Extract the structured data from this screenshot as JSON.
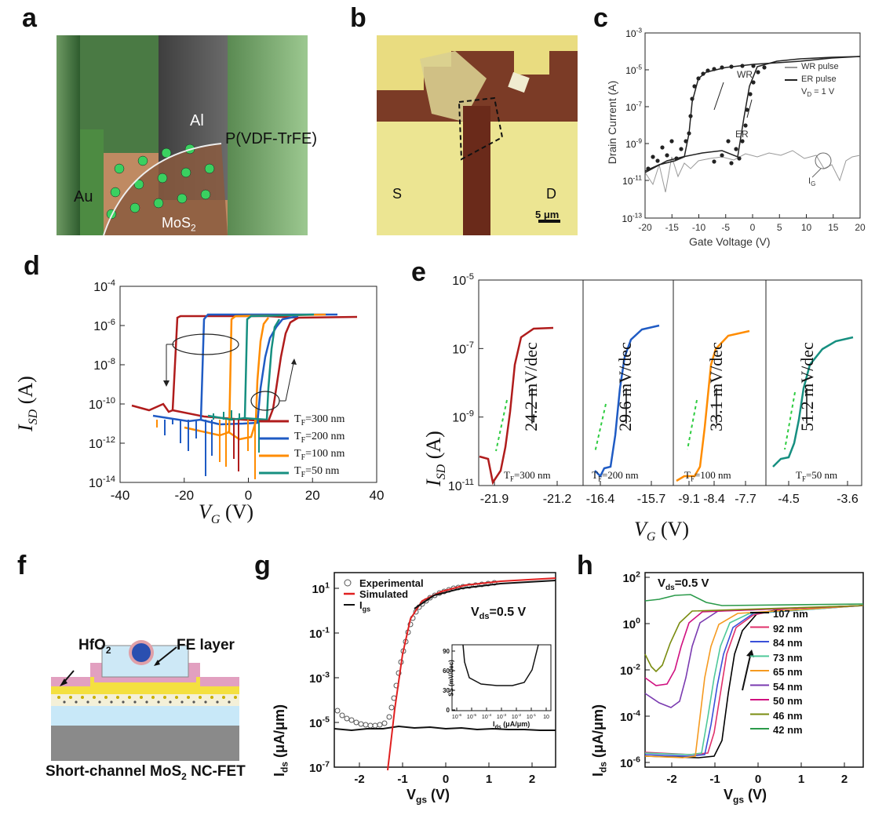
{
  "panels": {
    "a": {
      "letter": "a",
      "labels": {
        "al": "Al",
        "pvdf": "P(VDF-TrFE)",
        "au": "Au",
        "mos2": "MoS",
        "mos2_sub": "2"
      }
    },
    "b": {
      "letter": "b",
      "labels": {
        "s": "S",
        "d": "D",
        "scale": "5 μm"
      }
    },
    "c": {
      "letter": "c",
      "xlabel": "Gate Voltage (V)",
      "ylabel": "Drain Current (A)",
      "xticks": [
        "-20",
        "-15",
        "-10",
        "-5",
        "0",
        "5",
        "10",
        "15",
        "20"
      ],
      "yticks": [
        {
          "b": "10",
          "e": "-3"
        },
        {
          "b": "10",
          "e": "-5"
        },
        {
          "b": "10",
          "e": "-7"
        },
        {
          "b": "10",
          "e": "-9"
        },
        {
          "b": "10",
          "e": "-11"
        },
        {
          "b": "10",
          "e": "-13"
        }
      ],
      "legend": [
        "WR pulse",
        "ER pulse",
        "V",
        "D",
        " = 1 V"
      ],
      "annotations": {
        "wr": "WR",
        "er": "ER",
        "ig": "I",
        "ig_sub": "G"
      }
    },
    "d": {
      "letter": "d",
      "xlabel_main": "V",
      "xlabel_sub": "G",
      "xlabel_unit": " (V)",
      "ylabel_main": "I",
      "ylabel_sub": "SD",
      "ylabel_unit": " (A)",
      "xticks": [
        "-40",
        "-20",
        "0",
        "20",
        "40"
      ],
      "yticks": [
        {
          "b": "10",
          "e": "-4"
        },
        {
          "b": "10",
          "e": "-6"
        },
        {
          "b": "10",
          "e": "-8"
        },
        {
          "b": "10",
          "e": "-10"
        },
        {
          "b": "10",
          "e": "-12"
        },
        {
          "b": "10",
          "e": "-14"
        }
      ],
      "legend": [
        {
          "t": "T",
          "s": "F",
          "v": "=300 nm",
          "color": "#b01c1c"
        },
        {
          "t": "T",
          "s": "F",
          "v": "=200 nm",
          "color": "#1f5bc4"
        },
        {
          "t": "T",
          "s": "F",
          "v": "=100 nm",
          "color": "#ff8c00"
        },
        {
          "t": "T",
          "s": "F",
          "v": "=50 nm",
          "color": "#168f80"
        }
      ]
    },
    "e": {
      "letter": "e",
      "ylabel_main": "I",
      "ylabel_sub": "SD",
      "ylabel_unit": " (A)",
      "xlabel_main": "V",
      "xlabel_sub": "G",
      "xlabel_unit": " (V)",
      "yticks": [
        {
          "b": "10",
          "e": "-5"
        },
        {
          "b": "10",
          "e": "-7"
        },
        {
          "b": "10",
          "e": "-9"
        },
        {
          "b": "10",
          "e": "-11"
        }
      ],
      "xticks": [
        "-21.9",
        "-21.2",
        "-16.4",
        "-15.7",
        "-9.1",
        "-8.4",
        "-7.7",
        "-4.5",
        "-3.6"
      ],
      "subpanels": [
        {
          "ss": "24.2 mV/dec",
          "t": "T",
          "s": "F",
          "v": "=300 nm",
          "color": "#b01c1c"
        },
        {
          "ss": "29.6 mV/dec",
          "t": "T",
          "s": "F",
          "v": "=200 nm",
          "color": "#1f5bc4"
        },
        {
          "ss": "33.1 mV/dec",
          "t": "T",
          "s": "F",
          "v": "=100 nm",
          "color": "#ff8c00"
        },
        {
          "ss": "51.2 mV/dec",
          "t": "T",
          "s": "F",
          "v": "=50 nm",
          "color": "#168f80"
        }
      ]
    },
    "f": {
      "letter": "f",
      "labels": {
        "hfo2": "HfO",
        "hfo2_sub": "2",
        "fe": "FE layer",
        "caption_a": "Short-channel MoS",
        "caption_sub": "2",
        "caption_b": " NC-FET"
      }
    },
    "g": {
      "letter": "g",
      "xlabel_main": "V",
      "xlabel_sub": "gs",
      "xlabel_unit": " (V)",
      "ylabel_main": "I",
      "ylabel_sub": "ds",
      "ylabel_unit": " (μA/μm)",
      "xticks": [
        "-2",
        "-1",
        "0",
        "1",
        "2"
      ],
      "yticks": [
        {
          "b": "10",
          "e": "1"
        },
        {
          "b": "10",
          "e": "-1"
        },
        {
          "b": "10",
          "e": "-3"
        },
        {
          "b": "10",
          "e": "-5"
        },
        {
          "b": "10",
          "e": "-7"
        }
      ],
      "legend": [
        "Experimental",
        "Simulated",
        "I",
        "gs"
      ],
      "vds": "V",
      "vds_sub": "ds",
      "vds_val": "=0.5 V",
      "inset": {
        "ylabel": "SS (mV/dec)",
        "xlabel": "I",
        "xlabel_sub": "ds",
        "xlabel_unit": " (μA/μm)",
        "yticks": [
          "90",
          "60",
          "30",
          "0"
        ],
        "xticks": [
          "10",
          "10",
          "10",
          "10",
          "10",
          "10",
          "10"
        ],
        "xtick_exp": [
          "-6",
          "-5",
          "-4",
          "-3",
          "-2",
          "-1",
          ""
        ]
      }
    },
    "h": {
      "letter": "h",
      "xlabel_main": "V",
      "xlabel_sub": "gs",
      "xlabel_unit": " (V)",
      "ylabel_main": "I",
      "ylabel_sub": "ds",
      "ylabel_unit": " (μA/μm)",
      "xticks": [
        "-2",
        "-1",
        "0",
        "1",
        "2"
      ],
      "yticks": [
        {
          "b": "10",
          "e": "2"
        },
        {
          "b": "10",
          "e": "0"
        },
        {
          "b": "10",
          "e": "-2"
        },
        {
          "b": "10",
          "e": "-4"
        },
        {
          "b": "10",
          "e": "-6"
        }
      ],
      "vds": "V",
      "vds_sub": "ds",
      "vds_val": "=0.5 V",
      "legend": [
        {
          "label": "107 nm",
          "color": "#000000"
        },
        {
          "label": "92 nm",
          "color": "#e0306a"
        },
        {
          "label": "84 nm",
          "color": "#3a50d8"
        },
        {
          "label": "73 nm",
          "color": "#4ec89a"
        },
        {
          "label": "65 nm",
          "color": "#f59a20"
        },
        {
          "label": "54 nm",
          "color": "#7a3ab0"
        },
        {
          "label": "50 nm",
          "color": "#d01080"
        },
        {
          "label": "46 nm",
          "color": "#7a8c10"
        },
        {
          "label": "42 nm",
          "color": "#2a9a4a"
        }
      ]
    }
  }
}
